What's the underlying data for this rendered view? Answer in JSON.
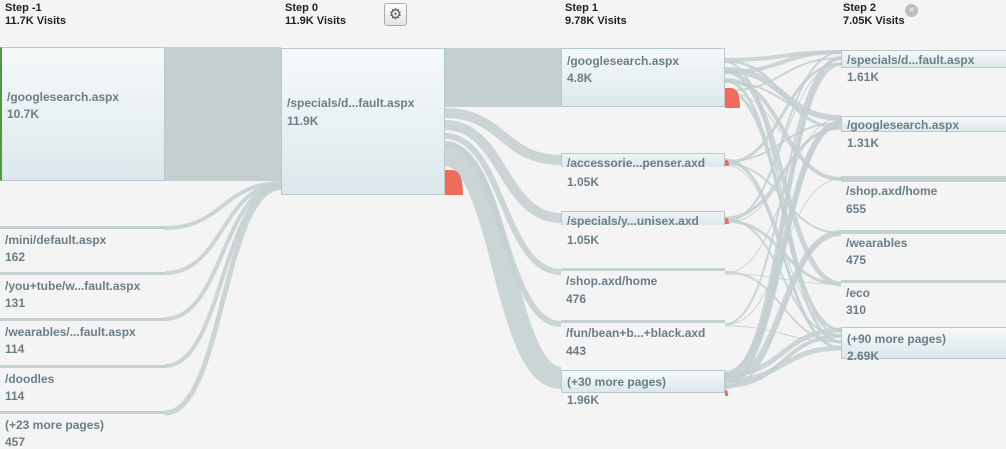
{
  "columns": [
    {
      "title": "Step -1",
      "visits": "11.7K Visits"
    },
    {
      "title": "Step 0",
      "visits": "11.9K Visits"
    },
    {
      "title": "Step 1",
      "visits": "9.78K Visits"
    },
    {
      "title": "Step 2",
      "visits": "7.05K Visits"
    }
  ],
  "icons": {
    "settings": "gear-icon",
    "close": "close-icon"
  },
  "colors": {
    "flow": "#c3cfd0",
    "dropoff": "#ef6b5b",
    "node_border": "#b9c8cd",
    "entry": "#4a9d3a"
  },
  "step_minus1": {
    "nodes": [
      {
        "label": "/googlesearch.aspx",
        "count": "10.7K"
      },
      {
        "label": "/mini/default.aspx",
        "count": "162"
      },
      {
        "label": "/you+tube/w...fault.aspx",
        "count": "131"
      },
      {
        "label": "/wearables/...fault.aspx",
        "count": "114"
      },
      {
        "label": "/doodles",
        "count": "114"
      },
      {
        "label": "(+23 more pages)",
        "count": "457"
      }
    ]
  },
  "step0": {
    "nodes": [
      {
        "label": "/specials/d...fault.aspx",
        "count": "11.9K"
      }
    ]
  },
  "step1": {
    "nodes": [
      {
        "label": "/googlesearch.aspx",
        "count": "4.8K"
      },
      {
        "label": "/accessorie...penser.axd",
        "count": "1.05K"
      },
      {
        "label": "/specials/y...unisex.axd",
        "count": "1.05K"
      },
      {
        "label": "/shop.axd/home",
        "count": "476"
      },
      {
        "label": "/fun/bean+b...+black.axd",
        "count": "443"
      },
      {
        "label": "(+30 more pages)",
        "count": "1.96K"
      }
    ]
  },
  "step2": {
    "nodes": [
      {
        "label": "/specials/d...fault.aspx",
        "count": "1.61K"
      },
      {
        "label": "/googlesearch.aspx",
        "count": "1.31K"
      },
      {
        "label": "/shop.axd/home",
        "count": "655"
      },
      {
        "label": "/wearables",
        "count": "475"
      },
      {
        "label": "/eco",
        "count": "310"
      },
      {
        "label": "(+90 more pages)",
        "count": "2.69K"
      }
    ]
  }
}
